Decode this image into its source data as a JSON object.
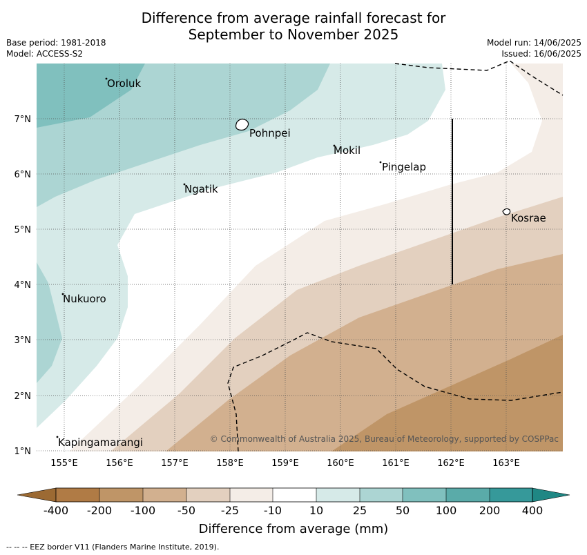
{
  "title": {
    "line1": "Difference from average rainfall forecast for",
    "line2": "September to November 2025"
  },
  "meta": {
    "base_period": "Base period: 1981-2018",
    "model": "Model: ACCESS-S2",
    "model_run": "Model run: 14/06/2025",
    "issued": "Issued: 16/06/2025"
  },
  "map": {
    "lon_ticks": [
      "155°E",
      "156°E",
      "157°E",
      "158°E",
      "159°E",
      "160°E",
      "161°E",
      "162°E",
      "163°E"
    ],
    "lat_ticks": [
      "7°N",
      "6°N",
      "5°N",
      "4°N",
      "3°N",
      "2°N",
      "1°N"
    ],
    "places": [
      "Oroluk",
      "Pohnpei",
      "Mokil",
      "Pingelap",
      "Ngatik",
      "Kosrae",
      "Nukuoro",
      "Kapingamarangi"
    ],
    "copyright": "© Commonwealth of Australia 2025, Bureau of Meteorology, supported by COSPPac"
  },
  "colorbar": {
    "tick_labels": [
      "-400",
      "-200",
      "-100",
      "-50",
      "-25",
      "-10",
      "10",
      "25",
      "50",
      "100",
      "200",
      "400"
    ],
    "colors": [
      "#9c6a33",
      "#b07b45",
      "#bf9567",
      "#d2b08f",
      "#e3d0bf",
      "#f4ede7",
      "#ffffff",
      "#d6eae8",
      "#acd5d3",
      "#80c0be",
      "#5aaba9",
      "#36999a",
      "#1f8784"
    ],
    "label": "Difference from average (mm)"
  },
  "footer": "-- -- -- EEZ border V11 (Flanders Marine Institute, 2019)."
}
